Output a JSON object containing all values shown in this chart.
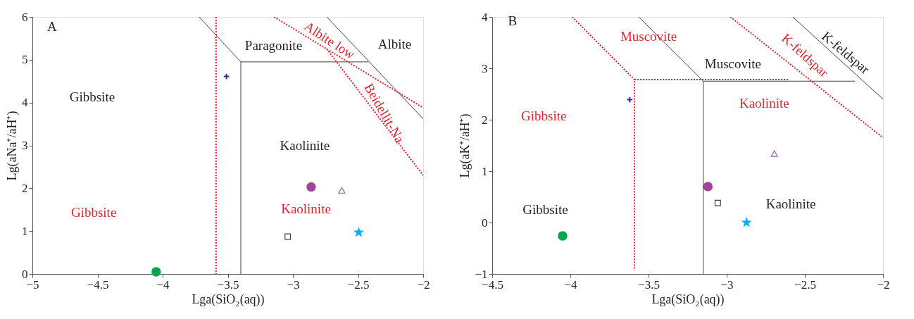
{
  "chart_data": [
    {
      "type": "scatter",
      "xlabel": "Lga(SiO₂(aq))",
      "ylabel": "Lg(aNa⁺/aH⁺)",
      "xlim": [
        -5,
        -2
      ],
      "ylim": [
        0,
        6
      ],
      "xticks": [
        -5,
        -4.5,
        -4,
        -3.5,
        -3,
        -2.5,
        -2
      ],
      "yticks": [
        0,
        1,
        2,
        3,
        4,
        5,
        6
      ],
      "grid": false,
      "series": [
        {
          "type": "line",
          "line_style": "solid",
          "color": "#404040",
          "x": [
            -3.72,
            -3.4,
            -3.4
          ],
          "values": [
            6,
            4.95,
            0
          ]
        },
        {
          "type": "line",
          "line_style": "solid",
          "color": "#404040",
          "x": [
            -3.4,
            -2.42
          ],
          "values": [
            4.95,
            4.95
          ]
        },
        {
          "type": "line",
          "line_style": "solid",
          "color": "#404040",
          "x": [
            -2.74,
            -2
          ],
          "values": [
            6,
            3.62
          ]
        },
        {
          "type": "line",
          "line_style": "dotted",
          "color": "#e0202e",
          "x": [
            -3.59,
            -3.59
          ],
          "values": [
            6,
            0
          ]
        },
        {
          "type": "line",
          "line_style": "dotted",
          "color": "#e0202e",
          "x": [
            -3.145,
            -2
          ],
          "values": [
            6,
            3.88
          ]
        },
        {
          "type": "line",
          "line_style": "dotted",
          "color": "#e0202e",
          "x": [
            -2.74,
            -2
          ],
          "values": [
            5.25,
            2.3
          ]
        },
        {
          "marker": "cross",
          "color": "#2e3192",
          "x": [
            -3.51
          ],
          "values": [
            4.61
          ]
        },
        {
          "marker": "circle",
          "color": "#00a650",
          "x": [
            -4.05
          ],
          "values": [
            0.05
          ]
        },
        {
          "marker": "circle",
          "color": "#a3449a",
          "x": [
            -2.86
          ],
          "values": [
            2.03
          ]
        },
        {
          "marker": "triangle",
          "color": "#8e5fa8",
          "x": [
            -2.625
          ],
          "values": [
            1.95
          ]
        },
        {
          "marker": "square",
          "color": "#404040",
          "x": [
            -3.04
          ],
          "values": [
            0.87
          ]
        },
        {
          "marker": "star",
          "color": "#00aeef",
          "x": [
            -2.495
          ],
          "values": [
            0.97
          ]
        }
      ],
      "annotations": [
        "A",
        "Gibbsite",
        "Paragonite",
        "Albite",
        "Kaolinite",
        "Gibbsite",
        "Kaolinite",
        "Albite low",
        "Beidellit-Na"
      ]
    },
    {
      "type": "scatter",
      "xlabel": "Lga(SiO₂(aq))",
      "ylabel": "Lg(aK⁺/aH⁺)",
      "xlim": [
        -4.5,
        -2
      ],
      "ylim": [
        -1,
        4
      ],
      "xticks": [
        -4.5,
        -4,
        -3.5,
        -3,
        -2.5,
        -2
      ],
      "yticks": [
        -1,
        0,
        1,
        2,
        3,
        4
      ],
      "grid": false,
      "series": [
        {
          "type": "line",
          "line_style": "solid",
          "color": "#404040",
          "x": [
            -3.563,
            -3.15,
            -3.15
          ],
          "values": [
            4,
            2.75,
            -1
          ]
        },
        {
          "type": "line",
          "line_style": "solid",
          "color": "#404040",
          "x": [
            -3.15,
            -2.18
          ],
          "values": [
            2.75,
            2.75
          ]
        },
        {
          "type": "line",
          "line_style": "solid",
          "color": "#404040",
          "x": [
            -2.578,
            -2
          ],
          "values": [
            4,
            2.4
          ]
        },
        {
          "type": "line",
          "line_style": "dotted",
          "color": "#e0202e",
          "x": [
            -3.988,
            -3.59,
            -3.59
          ],
          "values": [
            4,
            2.78,
            -0.93
          ]
        },
        {
          "type": "line",
          "line_style": "dotted",
          "color": "#e0202e",
          "x": [
            -3.59,
            -2.6
          ],
          "values": [
            2.78,
            2.78
          ]
        },
        {
          "type": "line",
          "line_style": "dotted",
          "color": "#e0202e",
          "x": [
            -2.976,
            -2
          ],
          "values": [
            4,
            1.65
          ]
        },
        {
          "marker": "cross",
          "color": "#2e3192",
          "x": [
            -3.62
          ],
          "values": [
            2.39
          ]
        },
        {
          "marker": "circle",
          "color": "#00a650",
          "x": [
            -4.05
          ],
          "values": [
            -0.26
          ]
        },
        {
          "marker": "circle",
          "color": "#a3449a",
          "x": [
            -3.12
          ],
          "values": [
            0.7
          ]
        },
        {
          "marker": "triangle",
          "color": "#8e5fa8",
          "x": [
            -2.695
          ],
          "values": [
            1.34
          ]
        },
        {
          "marker": "square",
          "color": "#404040",
          "x": [
            -3.057
          ],
          "values": [
            0.38
          ]
        },
        {
          "marker": "star",
          "color": "#00aeef",
          "x": [
            -2.873
          ],
          "values": [
            0.0
          ]
        }
      ],
      "annotations": [
        "B",
        "Muscovite",
        "Muscovite",
        "Gibbsite",
        "Kaolinite",
        "Gibbsite",
        "Kaolinite",
        "K-feldspar",
        "K-feldspar"
      ]
    }
  ]
}
